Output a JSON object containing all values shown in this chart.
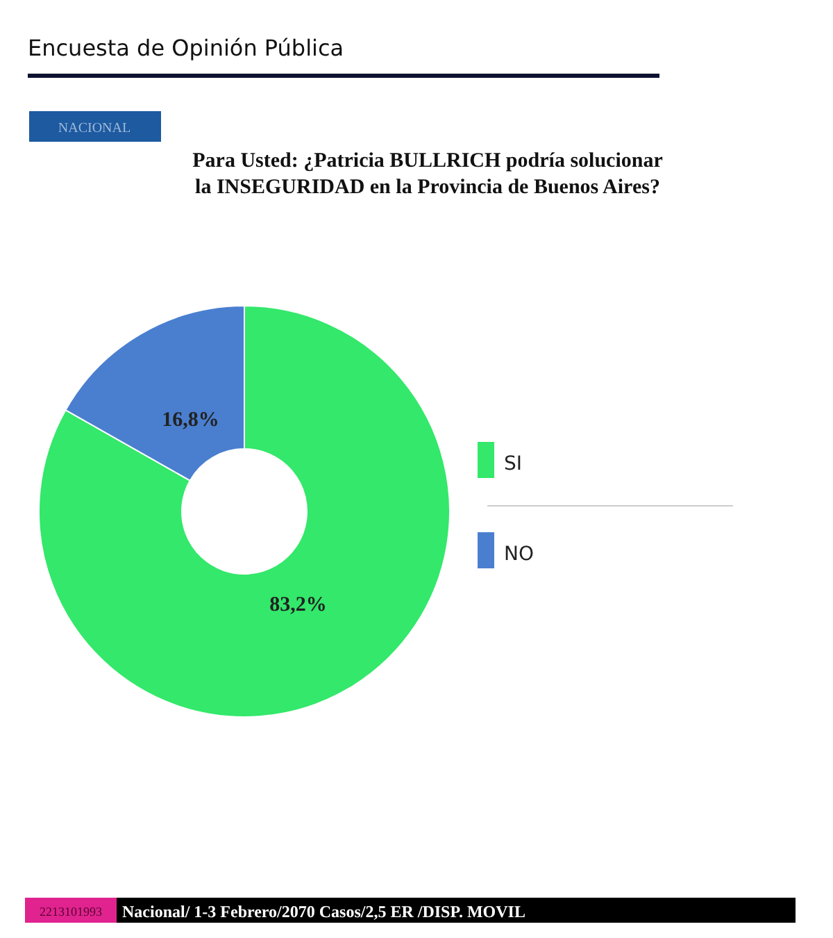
{
  "chart_data": {
    "type": "donut",
    "title": "Para Usted: ¿Patricia BULLRICH podría solucionar\nla INSEGURIDAD en la Provincia de Buenos Aires?",
    "categories": [
      "SI",
      "NO"
    ],
    "values": [
      83.2,
      16.8
    ],
    "colors": [
      "#33e86a",
      "#4a7fd0"
    ],
    "value_labels": [
      "83,2%",
      "16,8%"
    ],
    "legend": "right",
    "annotations": [
      "Encuesta de Opinión Pública",
      "NACIONAL",
      "2213101993",
      "Nacional/ 1-3 Febrero/2070 Casos/2,5 ER /DISP. MOVIL"
    ]
  }
}
